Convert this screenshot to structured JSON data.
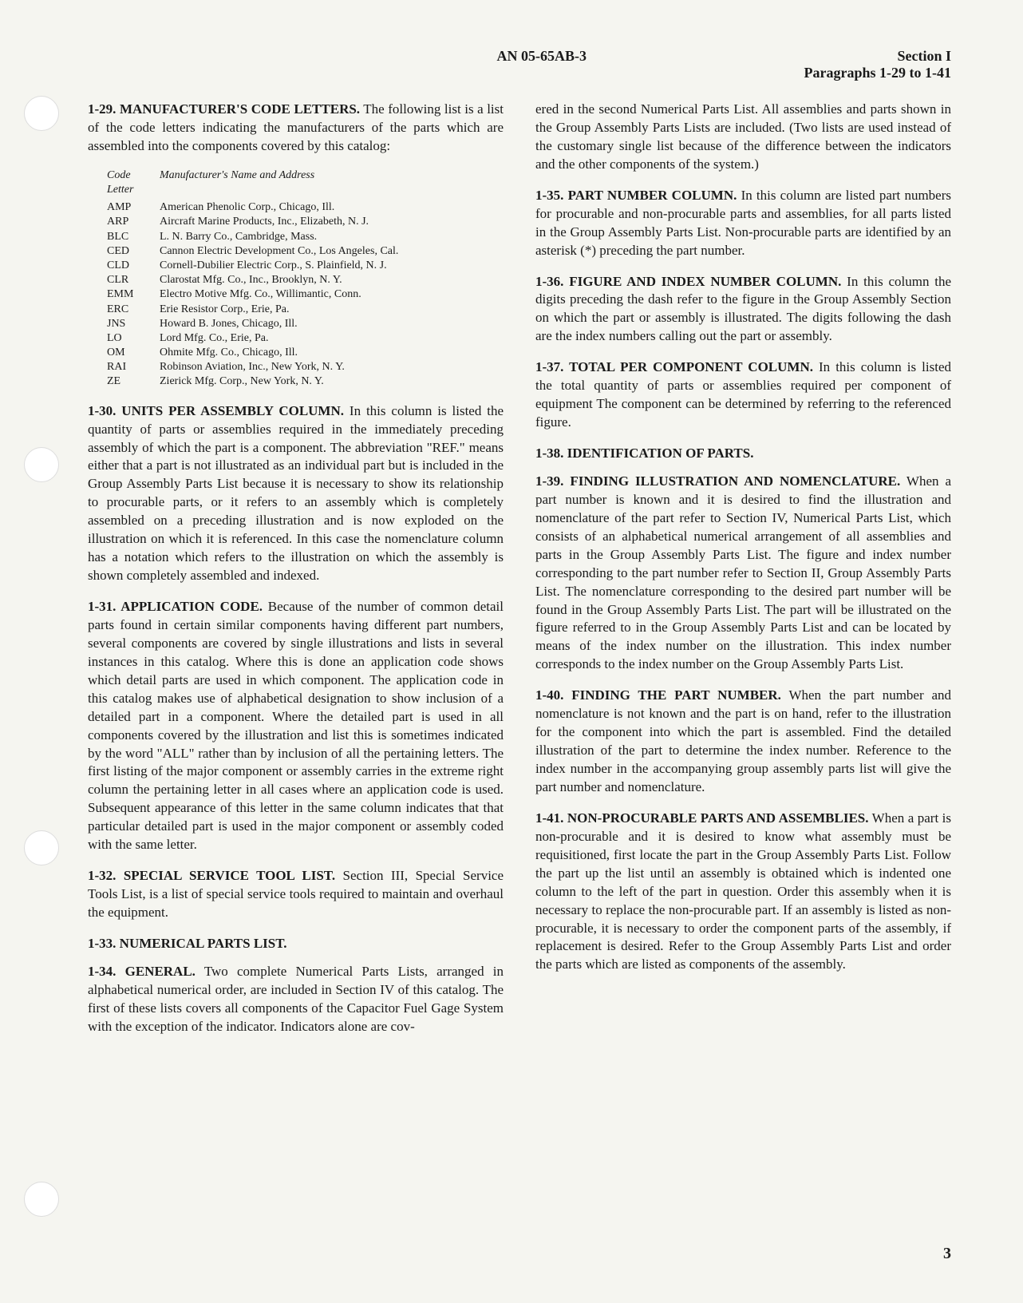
{
  "header": {
    "docNumber": "AN 05-65AB-3",
    "sectionLabel": "Section I",
    "paraRange": "Paragraphs 1-29 to 1-41"
  },
  "leftColumn": {
    "para129": {
      "heading": "1-29. MANUFACTURER'S CODE LETTERS.",
      "text": "The following list is a list of the code letters indicating the manufacturers of the parts which are assembled into the components covered by this catalog:"
    },
    "codeTable": {
      "headerCode": "Code Letter",
      "headerName": "Manufacturer's Name and Address",
      "rows": [
        {
          "code": "AMP",
          "name": "American Phenolic Corp., Chicago, Ill."
        },
        {
          "code": "ARP",
          "name": "Aircraft Marine Products, Inc., Elizabeth, N. J."
        },
        {
          "code": "BLC",
          "name": "L. N. Barry Co., Cambridge, Mass."
        },
        {
          "code": "CED",
          "name": "Cannon Electric Development Co., Los Angeles, Cal."
        },
        {
          "code": "CLD",
          "name": "Cornell-Dubilier Electric Corp., S. Plainfield, N. J."
        },
        {
          "code": "CLR",
          "name": "Clarostat Mfg. Co., Inc., Brooklyn, N. Y."
        },
        {
          "code": "EMM",
          "name": "Electro Motive Mfg. Co., Willimantic, Conn."
        },
        {
          "code": "ERC",
          "name": "Erie Resistor Corp., Erie, Pa."
        },
        {
          "code": "JNS",
          "name": "Howard B. Jones, Chicago, Ill."
        },
        {
          "code": "LO",
          "name": "Lord Mfg. Co., Erie, Pa."
        },
        {
          "code": "OM",
          "name": "Ohmite Mfg. Co., Chicago, Ill."
        },
        {
          "code": "RAI",
          "name": "Robinson Aviation, Inc., New York, N. Y."
        },
        {
          "code": "ZE",
          "name": "Zierick Mfg. Corp., New York, N. Y."
        }
      ]
    },
    "para130": {
      "heading": "1-30. UNITS PER ASSEMBLY COLUMN.",
      "text": "In this column is listed the quantity of parts or assemblies required in the immediately preceding assembly of which the part is a component. The abbreviation \"REF.\" means either that a part is not illustrated as an individual part but is included in the Group Assembly Parts List because it is necessary to show its relationship to procurable parts, or it refers to an assembly which is completely assembled on a preceding illustration and is now exploded on the illustration on which it is referenced. In this case the nomenclature column has a notation which refers to the illustration on which the assembly is shown completely assembled and indexed."
    },
    "para131": {
      "heading": "1-31. APPLICATION CODE.",
      "text": "Because of the number of common detail parts found in certain similar components having different part numbers, several components are covered by single illustrations and lists in several instances in this catalog. Where this is done an application code shows which detail parts are used in which component. The application code in this catalog makes use of alphabetical designation to show inclusion of a detailed part in a component. Where the detailed part is used in all components covered by the illustration and list this is sometimes indicated by the word \"ALL\" rather than by inclusion of all the pertaining letters. The first listing of the major component or assembly carries in the extreme right column the pertaining letter in all cases where an application code is used. Subsequent appearance of this letter in the same column indicates that that particular detailed part is used in the major component or assembly coded with the same letter."
    },
    "para132": {
      "heading": "1-32. SPECIAL SERVICE TOOL LIST.",
      "text": "Section III, Special Service Tools List, is a list of special service tools required to maintain and overhaul the equipment."
    },
    "para133": {
      "heading": "1-33. NUMERICAL PARTS LIST."
    },
    "para134": {
      "heading": "1-34. GENERAL.",
      "text": "Two complete Numerical Parts Lists, arranged in alphabetical numerical order, are included in Section IV of this catalog. The first of these lists covers all components of the Capacitor Fuel Gage System with the exception of the indicator. Indicators alone are cov-"
    }
  },
  "rightColumn": {
    "para134cont": "ered in the second Numerical Parts List. All assemblies and parts shown in the Group Assembly Parts Lists are included. (Two lists are used instead of the customary single list because of the difference between the indicators and the other components of the system.)",
    "para135": {
      "heading": "1-35. PART NUMBER COLUMN.",
      "text": "In this column are listed part numbers for procurable and non-procurable parts and assemblies, for all parts listed in the Group Assembly Parts List. Non-procurable parts are identified by an asterisk (*) preceding the part number."
    },
    "para136": {
      "heading": "1-36. FIGURE AND INDEX NUMBER COLUMN.",
      "text": "In this column the digits preceding the dash refer to the figure in the Group Assembly Section on which the part or assembly is illustrated. The digits following the dash are the index numbers calling out the part or assembly."
    },
    "para137": {
      "heading": "1-37. TOTAL PER COMPONENT COLUMN.",
      "text": "In this column is listed the total quantity of parts or assemblies required per component of equipment The component can be determined by referring to the referenced figure."
    },
    "para138": {
      "heading": "1-38. IDENTIFICATION OF PARTS."
    },
    "para139": {
      "heading": "1-39. FINDING ILLUSTRATION AND NOMENCLATURE.",
      "text": "When a part number is known and it is desired to find the illustration and nomenclature of the part refer to Section IV, Numerical Parts List, which consists of an alphabetical numerical arrangement of all assemblies and parts in the Group Assembly Parts List. The figure and index number corresponding to the part number refer to Section II, Group Assembly Parts List. The nomenclature corresponding to the desired part number will be found in the Group Assembly Parts List. The part will be illustrated on the figure referred to in the Group Assembly Parts List and can be located by means of the index number on the illustration. This index number corresponds to the index number on the Group Assembly Parts List."
    },
    "para140": {
      "heading": "1-40. FINDING THE PART NUMBER.",
      "text": "When the part number and nomenclature is not known and the part is on hand, refer to the illustration for the component into which the part is assembled. Find the detailed illustration of the part to determine the index number. Reference to the index number in the accompanying group assembly parts list will give the part number and nomenclature."
    },
    "para141": {
      "heading": "1-41. NON-PROCURABLE PARTS AND ASSEMBLIES.",
      "text": "When a part is non-procurable and it is desired to know what assembly must be requisitioned, first locate the part in the Group Assembly Parts List. Follow the part up the list until an assembly is obtained which is indented one column to the left of the part in question. Order this assembly when it is necessary to replace the non-procurable part. If an assembly is listed as non-procurable, it is necessary to order the component parts of the assembly, if replacement is desired. Refer to the Group Assembly Parts List and order the parts which are listed as components of the assembly."
    }
  },
  "pageNumber": "3"
}
